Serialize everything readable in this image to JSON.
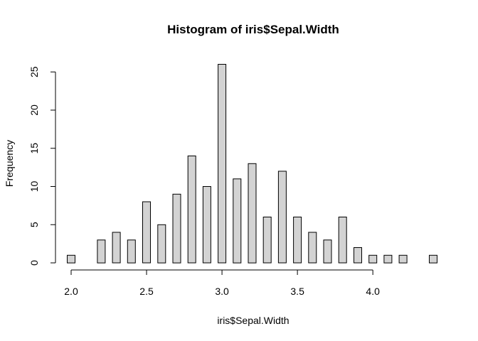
{
  "chart_data": {
    "type": "bar",
    "title": "Histogram of iris$Sepal.Width",
    "xlabel": "iris$Sepal.Width",
    "ylabel": "Frequency",
    "x": [
      2.0,
      2.2,
      2.3,
      2.4,
      2.5,
      2.6,
      2.7,
      2.8,
      2.9,
      3.0,
      3.1,
      3.2,
      3.3,
      3.4,
      3.5,
      3.6,
      3.7,
      3.8,
      3.9,
      4.0,
      4.1,
      4.2,
      4.4
    ],
    "values": [
      1,
      3,
      4,
      3,
      8,
      5,
      9,
      14,
      10,
      26,
      11,
      13,
      6,
      12,
      6,
      4,
      3,
      6,
      2,
      1,
      1,
      1,
      1
    ],
    "xlim": [
      2.0,
      4.4
    ],
    "ylim": [
      0,
      26
    ],
    "xticks": [
      "2.0",
      "2.5",
      "3.0",
      "3.5",
      "4.0"
    ],
    "yticks": [
      "0",
      "5",
      "10",
      "15",
      "20",
      "25"
    ],
    "bar_fill": "#d3d3d3",
    "grid": false,
    "legend": "none"
  }
}
